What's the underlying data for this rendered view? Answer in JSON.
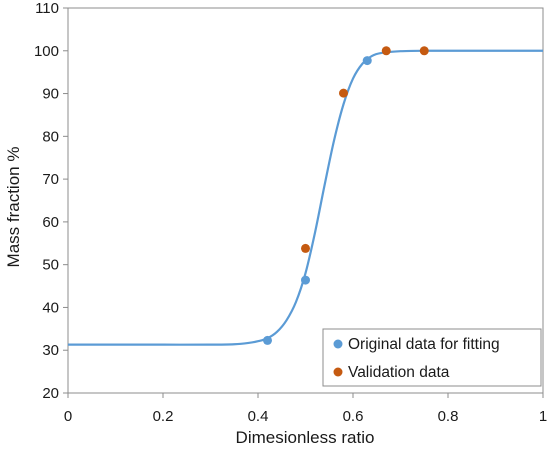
{
  "chart_data": {
    "type": "scatter",
    "title": "",
    "xlabel": "Dimesionless ratio",
    "ylabel": "Mass fraction %",
    "xlim": [
      0,
      1
    ],
    "ylim": [
      20,
      110
    ],
    "x_ticks": [
      0,
      0.2,
      0.4,
      0.6,
      0.8,
      1
    ],
    "x_tick_labels": [
      "0",
      "0.2",
      "0.4",
      "0.6",
      "0.8",
      "1"
    ],
    "y_ticks": [
      20,
      30,
      40,
      50,
      60,
      70,
      80,
      90,
      100,
      110
    ],
    "y_tick_labels": [
      "20",
      "30",
      "40",
      "50",
      "60",
      "70",
      "80",
      "90",
      "100",
      "110"
    ],
    "grid": false,
    "legend_position": "bottom-right",
    "series": [
      {
        "name": "Original data for fitting",
        "kind": "scatter",
        "color": "#5b9bd5",
        "x": [
          0.42,
          0.5,
          0.63
        ],
        "y": [
          32.3,
          46.4,
          97.7
        ]
      },
      {
        "name": "Validation data",
        "kind": "scatter",
        "color": "#c55a11",
        "x": [
          0.5,
          0.58,
          0.67,
          0.75
        ],
        "y": [
          53.8,
          90.1,
          100,
          100
        ]
      },
      {
        "name": "",
        "kind": "line",
        "color": "#5b9bd5",
        "x": [
          0.0,
          0.1,
          0.2,
          0.3,
          0.35,
          0.38,
          0.4,
          0.42,
          0.44,
          0.46,
          0.48,
          0.5,
          0.52,
          0.54,
          0.56,
          0.58,
          0.6,
          0.62,
          0.64,
          0.66,
          0.7,
          0.75,
          0.8,
          0.9,
          1.0
        ],
        "y": [
          31.3,
          31.3,
          31.3,
          31.3,
          31.4,
          31.7,
          32.1,
          32.8,
          34.3,
          37.0,
          41.3,
          48.0,
          57.5,
          68.5,
          79.0,
          87.5,
          93.5,
          97.0,
          98.8,
          99.5,
          99.9,
          100,
          100,
          100,
          100
        ]
      }
    ]
  }
}
